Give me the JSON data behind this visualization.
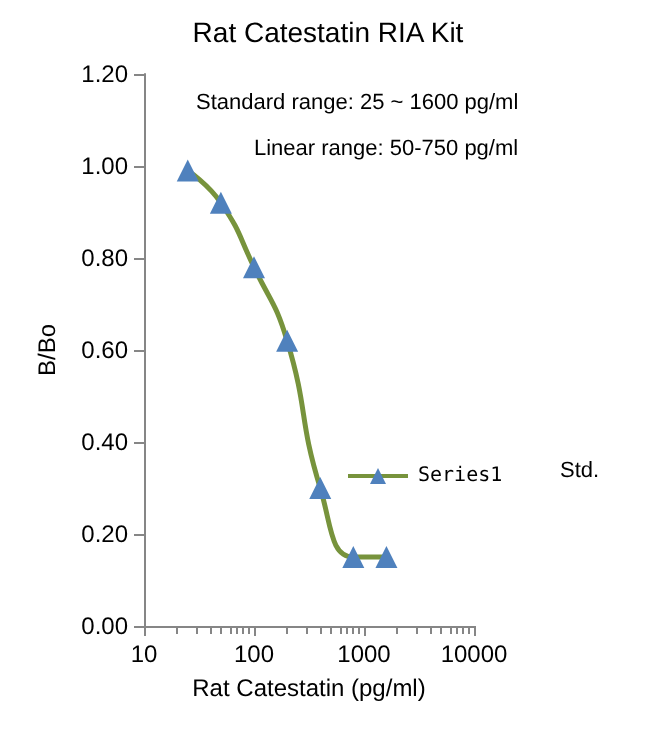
{
  "chart_data": {
    "type": "line",
    "title": "Rat Catestatin RIA Kit",
    "xlabel": "Rat Catestatin (pg/ml)",
    "ylabel": "B/Bo",
    "annotations": [
      "Standard range: 25 ~ 1600 pg/ml",
      "Linear range: 50-750 pg/ml",
      "Std."
    ],
    "x": [
      25,
      50,
      100,
      200,
      400,
      800,
      1600
    ],
    "series": [
      {
        "name": "Series1",
        "color": "#77933c",
        "colors": [
          "#4f81bd",
          "#4f81bd",
          "#4f81bd",
          "#4f81bd",
          "#4f81bd",
          "#4f81bd",
          "#4f81bd"
        ],
        "values": [
          0.99,
          0.92,
          0.78,
          0.62,
          0.3,
          0.15,
          0.15
        ]
      }
    ],
    "xlim": [
      10,
      10000
    ],
    "xticks": [
      10,
      100,
      1000,
      10000
    ],
    "ylim": [
      0,
      1.2
    ],
    "yticks": [
      {
        "value": 0,
        "label": "0.00"
      },
      {
        "value": 0.2,
        "label": "0.20"
      },
      {
        "value": 0.4,
        "label": "0.40"
      },
      {
        "value": 0.6,
        "label": "0.60"
      },
      {
        "value": 0.8,
        "label": "0.80"
      },
      {
        "value": 1.0,
        "label": "1.00"
      },
      {
        "value": 1.2,
        "label": "1.20"
      }
    ],
    "log": "x",
    "grid": false,
    "legend": "right",
    "marker": "triangle",
    "line_style": "solid"
  }
}
